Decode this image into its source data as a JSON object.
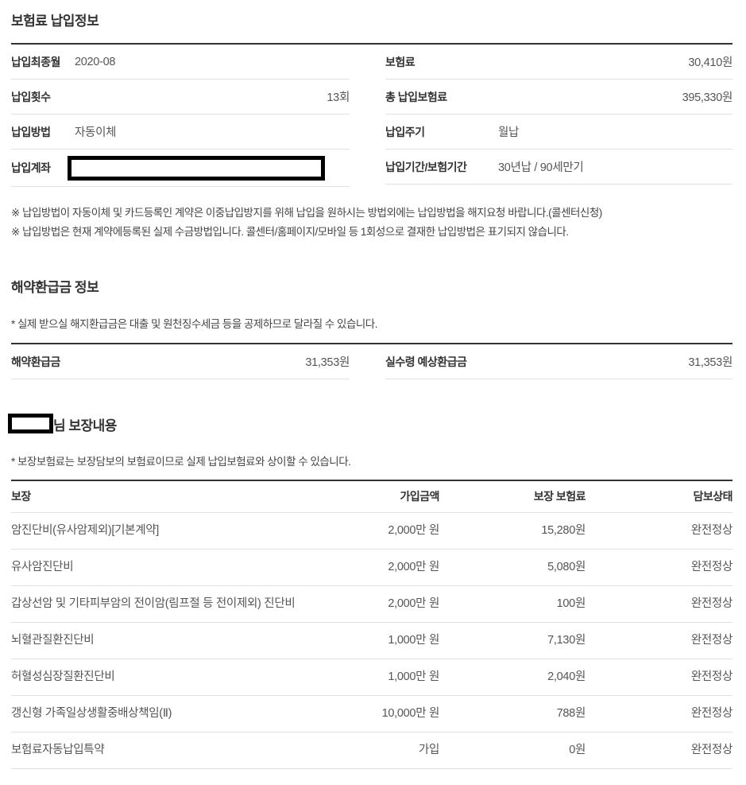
{
  "colors": {
    "text_dark": "#333333",
    "text_value": "#555555",
    "border_thick": "#333333",
    "border_thin": "#e1e1e1",
    "redaction": "#000000"
  },
  "payment_info": {
    "title": "보험료 납입정보",
    "left_rows": [
      {
        "label": "납입최종월",
        "value": "2020-08"
      },
      {
        "label": "납입횟수",
        "value": "13회"
      },
      {
        "label": "납입방법",
        "value": "자동이체"
      },
      {
        "label": "납입계좌",
        "value": "",
        "redacted": true
      }
    ],
    "right_rows": [
      {
        "label": "보험료",
        "value": "30,410원"
      },
      {
        "label": "총 납입보험료",
        "value": "395,330원"
      },
      {
        "label": "납입주기",
        "value": "월납"
      },
      {
        "label": "납입기간/보험기간",
        "value": "30년납 / 90세만기"
      }
    ],
    "notes": [
      "※ 납입방법이 자동이체 및 카드등록인 계약은 이중납입방지를 위해 납입을 원하시는 방법외에는 납입방법을 해지요청 바랍니다.(콜센터신청)",
      "※ 납입방법은 현재 계약에등록된 실제 수금방법입니다. 콜센터/홈페이지/모바일 등 1회성으로 결재한 납입방법은 표기되지 않습니다."
    ]
  },
  "refund_info": {
    "title": "해약환급금 정보",
    "note": "* 실제 받으실 해지환급금은 대출 및 원천징수세금 등을 공제하므로 달라질 수 있습니다.",
    "left": {
      "label": "해약환급금",
      "value": "31,353원"
    },
    "right": {
      "label": "실수령 예상환급금",
      "value": "31,353원"
    }
  },
  "coverage": {
    "title_suffix": "님 보장내용",
    "note": "* 보장보험료는 보장담보의 보험료이므로 실제 납입보험료와 상이할 수 있습니다.",
    "headers": [
      "보장",
      "가입금액",
      "보장 보험료",
      "담보상태"
    ],
    "rows": [
      [
        "암진단비(유사암제외)[기본계약]",
        "2,000만 원",
        "15,280원",
        "완전정상"
      ],
      [
        "유사암진단비",
        "2,000만 원",
        "5,080원",
        "완전정상"
      ],
      [
        "갑상선암 및 기타피부암의 전이암(림프절 등 전이제외) 진단비",
        "2,000만 원",
        "100원",
        "완전정상"
      ],
      [
        "뇌혈관질환진단비",
        "1,000만 원",
        "7,130원",
        "완전정상"
      ],
      [
        "허혈성심장질환진단비",
        "1,000만 원",
        "2,040원",
        "완전정상"
      ],
      [
        "갱신형 가족일상생활중배상책임(Ⅱ)",
        "10,000만 원",
        "788원",
        "완전정상"
      ],
      [
        "보험료자동납입특약",
        "가입",
        "0원",
        "완전정상"
      ]
    ]
  }
}
